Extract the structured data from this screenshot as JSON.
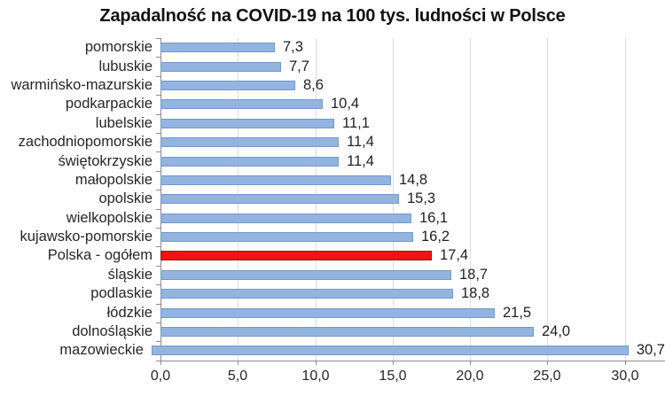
{
  "title": "Zapadalność na COVID-19 na 100 tys. ludności w Polsce",
  "colors": {
    "bar_fill": "#92B4DF",
    "bar_border": "#7499C9",
    "highlight_fill": "#EE1414",
    "highlight_border": "#A91010",
    "gridline": "#DCDCDC",
    "axis": "#8C8C8C",
    "text": "#1F1F1F"
  },
  "chart_data": {
    "type": "bar",
    "orientation": "horizontal",
    "title": "Zapadalność na COVID-19 na 100 tys. ludności w Polsce",
    "xlabel": "",
    "ylabel": "",
    "grid": "vertical",
    "legend": false,
    "categories": [
      "pomorskie",
      "lubuskie",
      "warmińsko-mazurskie",
      "podkarpackie",
      "lubelskie",
      "zachodniopomorskie",
      "świętokrzyskie",
      "małopolskie",
      "opolskie",
      "wielkopolskie",
      "kujawsko-pomorskie",
      "Polska - ogółem",
      "śląskie",
      "podlaskie",
      "łódzkie",
      "dolnośląskie",
      "mazowieckie"
    ],
    "values": [
      7.3,
      7.7,
      8.6,
      10.4,
      11.1,
      11.4,
      11.4,
      14.8,
      15.3,
      16.1,
      16.2,
      17.4,
      18.7,
      18.8,
      21.5,
      24.0,
      30.7
    ],
    "value_labels": [
      "7,3",
      "7,7",
      "8,6",
      "10,4",
      "11,1",
      "11,4",
      "11,4",
      "14,8",
      "15,3",
      "16,1",
      "16,2",
      "17,4",
      "18,7",
      "18,8",
      "21,5",
      "24,0",
      "30,7"
    ],
    "highlight_category": "Polska - ogółem",
    "highlight_index": 11,
    "xlim": [
      0,
      32.5
    ],
    "x_ticks": [
      0,
      5,
      10,
      15,
      20,
      25,
      30
    ],
    "x_tick_labels": [
      "0,0",
      "5,0",
      "10,0",
      "15,0",
      "20,0",
      "25,0",
      "30,0"
    ]
  }
}
